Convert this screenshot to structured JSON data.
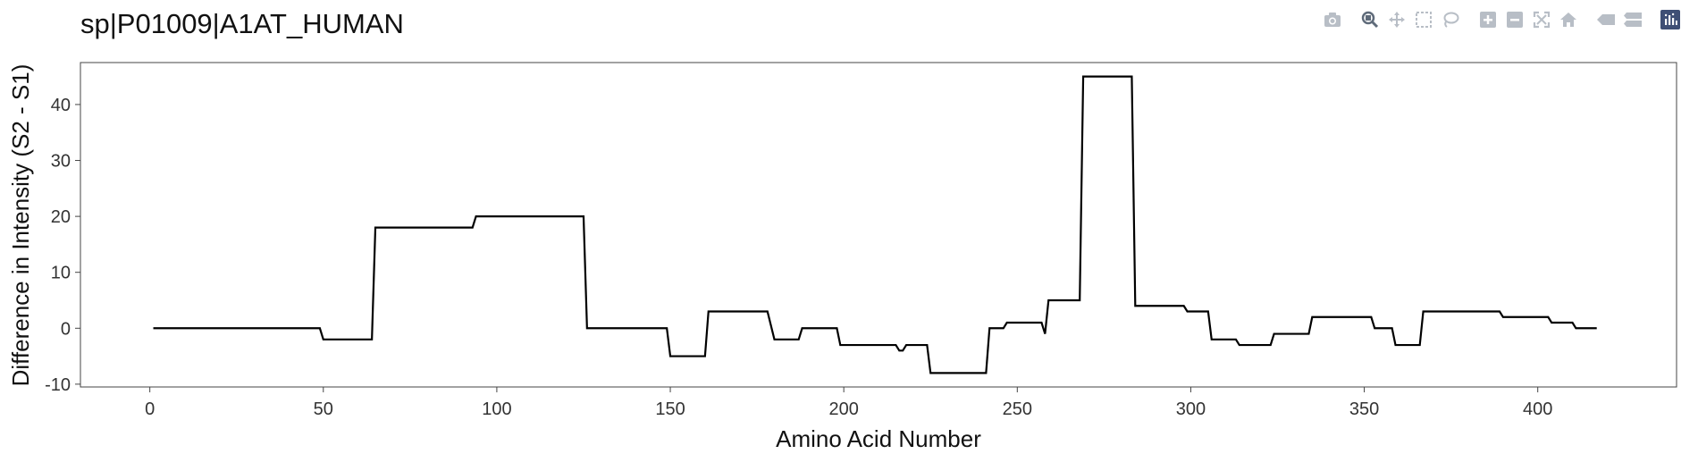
{
  "chart_data": {
    "type": "line",
    "title": "sp|P01009|A1AT_HUMAN",
    "xlabel": "Amino Acid Number",
    "ylabel": "Difference in Intensity (S2 - S1)",
    "xlim": [
      -20,
      440
    ],
    "ylim": [
      -10.5,
      47.5
    ],
    "x_ticks": [
      0,
      50,
      100,
      150,
      200,
      250,
      300,
      350,
      400
    ],
    "y_ticks": [
      -10,
      0,
      10,
      20,
      30,
      40
    ],
    "grid": false,
    "line_color": "#000000",
    "series": [
      {
        "x": [
          1,
          49,
          50,
          64,
          65,
          93,
          94,
          125,
          126,
          149,
          150,
          160,
          161,
          178,
          180,
          187,
          188,
          198,
          199,
          215,
          216,
          217,
          218,
          224,
          225,
          241,
          242,
          246,
          247,
          257,
          258,
          259,
          268,
          269,
          283,
          284,
          298,
          299,
          305,
          306,
          313,
          314,
          323,
          324,
          334,
          335,
          352,
          353,
          358,
          359,
          366,
          367,
          389,
          390,
          403,
          404,
          410,
          411,
          417
        ],
        "y": [
          0,
          0,
          -2,
          -2,
          18,
          18,
          20,
          20,
          0,
          0,
          -5,
          -5,
          3,
          3,
          -2,
          -2,
          0,
          0,
          -3,
          -3,
          -4,
          -4,
          -3,
          -3,
          -8,
          -8,
          0,
          0,
          1,
          1,
          -1,
          5,
          5,
          45,
          45,
          4,
          4,
          3,
          3,
          -2,
          -2,
          -3,
          -3,
          -1,
          -1,
          2,
          2,
          0,
          0,
          -3,
          -3,
          3,
          3,
          2,
          2,
          1,
          1,
          0,
          0
        ]
      }
    ]
  },
  "modebar": {
    "icons": [
      "camera-icon",
      "zoom-icon",
      "pan-icon",
      "box-select-icon",
      "lasso-icon",
      "zoom-in-icon",
      "zoom-out-icon",
      "autoscale-icon",
      "home-icon",
      "hover-closest-icon",
      "hover-compare-icon",
      "plotly-logo-icon"
    ],
    "active": "zoom-icon",
    "icon_color": "#b8bec6",
    "active_color": "#5f6b7a",
    "logo_color": "#3f4f75"
  }
}
